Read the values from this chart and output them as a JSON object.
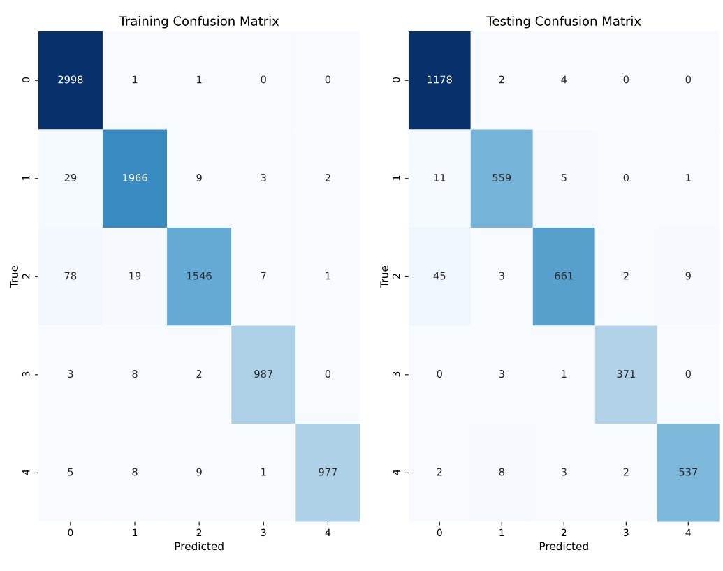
{
  "chart_data": [
    {
      "type": "heatmap",
      "title": "Training Confusion Matrix",
      "xlabel": "Predicted",
      "ylabel": "True",
      "categories": [
        "0",
        "1",
        "2",
        "3",
        "4"
      ],
      "y_categories": [
        "0",
        "1",
        "2",
        "3",
        "4"
      ],
      "data_labels": true,
      "cells": [
        [
          2998,
          1,
          1,
          0,
          0
        ],
        [
          29,
          1966,
          9,
          3,
          2
        ],
        [
          78,
          19,
          1546,
          7,
          1
        ],
        [
          3,
          8,
          2,
          987,
          0
        ],
        [
          5,
          8,
          9,
          1,
          977
        ]
      ]
    },
    {
      "type": "heatmap",
      "title": "Testing Confusion Matrix",
      "xlabel": "Predicted",
      "ylabel": "True",
      "categories": [
        "0",
        "1",
        "2",
        "3",
        "4"
      ],
      "y_categories": [
        "0",
        "1",
        "2",
        "3",
        "4"
      ],
      "data_labels": true,
      "cells": [
        [
          1178,
          2,
          4,
          0,
          0
        ],
        [
          11,
          559,
          5,
          0,
          1
        ],
        [
          45,
          3,
          661,
          2,
          9
        ],
        [
          0,
          3,
          1,
          371,
          0
        ],
        [
          2,
          8,
          3,
          2,
          537
        ]
      ]
    }
  ]
}
